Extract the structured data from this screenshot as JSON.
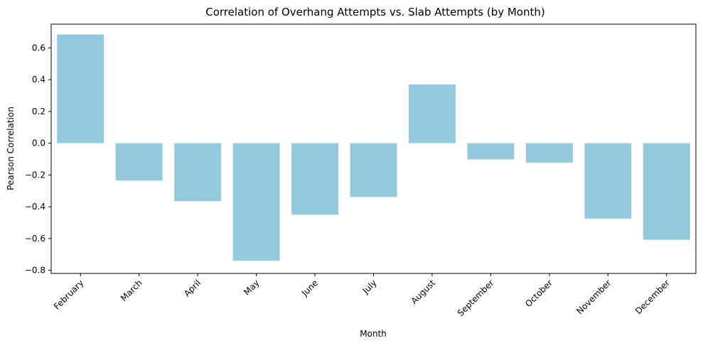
{
  "chart_data": {
    "type": "bar",
    "title": "Correlation of Overhang Attempts vs. Slab Attempts (by Month)",
    "xlabel": "Month",
    "ylabel": "Pearson Correlation",
    "categories": [
      "February",
      "March",
      "April",
      "May",
      "June",
      "July",
      "August",
      "September",
      "October",
      "November",
      "December"
    ],
    "values": [
      0.685,
      -0.235,
      -0.365,
      -0.74,
      -0.45,
      -0.338,
      0.37,
      -0.102,
      -0.122,
      -0.475,
      -0.608
    ],
    "ylim": [
      -0.82,
      0.75
    ],
    "yticks": [
      -0.8,
      -0.6,
      -0.4,
      -0.2,
      0.0,
      0.2,
      0.4,
      0.6
    ],
    "ytick_labels": [
      "−0.8",
      "−0.6",
      "−0.4",
      "−0.2",
      "0.0",
      "0.2",
      "0.4",
      "0.6"
    ],
    "bar_color": "#92c9df",
    "grid": false,
    "legend": "none"
  }
}
